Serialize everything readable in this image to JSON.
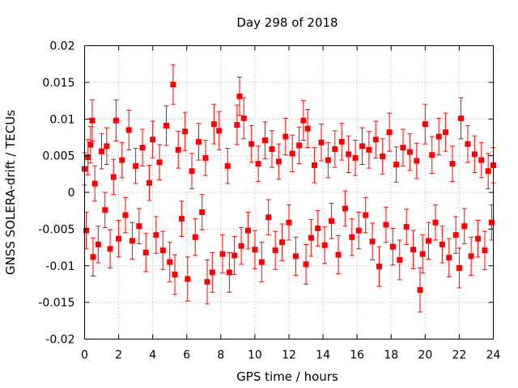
{
  "chart_data": {
    "type": "scatter",
    "title": "Day 298 of 2018",
    "xlabel": "GPS time / hours",
    "ylabel": "GNSS SOLERA-drift / TECUs",
    "xlim": [
      0,
      24
    ],
    "ylim": [
      -0.02,
      0.02
    ],
    "x_ticks": [
      0,
      2,
      4,
      6,
      8,
      10,
      12,
      14,
      16,
      18,
      20,
      22,
      24
    ],
    "x_tick_labels": [
      "0",
      "2",
      "4",
      "6",
      "8",
      "10",
      "12",
      "14",
      "16",
      "18",
      "20",
      "22",
      "24"
    ],
    "y_ticks": [
      -0.02,
      -0.015,
      -0.01,
      -0.005,
      0,
      0.005,
      0.01,
      0.015,
      0.02
    ],
    "y_tick_labels": [
      "-0.02",
      "-0.015",
      "-0.01",
      "-0.005",
      "0",
      "0.005",
      "0.01",
      "0.015",
      "0.02"
    ],
    "grid": true,
    "marker": "square",
    "error_bars": true,
    "series_color": "#ff0000",
    "series": [
      {
        "name": "",
        "points": [
          {
            "x": 0.0,
            "y": 0.0032,
            "err": 0.0022
          },
          {
            "x": 0.1,
            "y": -0.0052,
            "err": 0.0025
          },
          {
            "x": 0.2,
            "y": 0.0048,
            "err": 0.0024
          },
          {
            "x": 0.35,
            "y": 0.0065,
            "err": 0.0025
          },
          {
            "x": 0.45,
            "y": 0.0098,
            "err": 0.0028
          },
          {
            "x": 0.5,
            "y": -0.0088,
            "err": 0.0026
          },
          {
            "x": 0.6,
            "y": 0.0012,
            "err": 0.0024
          },
          {
            "x": 0.8,
            "y": -0.0071,
            "err": 0.0025
          },
          {
            "x": 1.0,
            "y": 0.0056,
            "err": 0.0024
          },
          {
            "x": 1.2,
            "y": -0.0024,
            "err": 0.0024
          },
          {
            "x": 1.3,
            "y": 0.0063,
            "err": 0.0025
          },
          {
            "x": 1.5,
            "y": -0.0077,
            "err": 0.0026
          },
          {
            "x": 1.7,
            "y": 0.0021,
            "err": 0.0024
          },
          {
            "x": 1.85,
            "y": 0.0098,
            "err": 0.0028
          },
          {
            "x": 2.0,
            "y": -0.0063,
            "err": 0.0025
          },
          {
            "x": 2.2,
            "y": 0.0044,
            "err": 0.0024
          },
          {
            "x": 2.4,
            "y": -0.0031,
            "err": 0.0024
          },
          {
            "x": 2.6,
            "y": 0.0085,
            "err": 0.0027
          },
          {
            "x": 2.8,
            "y": -0.0066,
            "err": 0.0025
          },
          {
            "x": 3.0,
            "y": 0.0036,
            "err": 0.0024
          },
          {
            "x": 3.2,
            "y": -0.0046,
            "err": 0.0024
          },
          {
            "x": 3.4,
            "y": 0.0061,
            "err": 0.0025
          },
          {
            "x": 3.6,
            "y": -0.0082,
            "err": 0.0026
          },
          {
            "x": 3.8,
            "y": 0.0013,
            "err": 0.0024
          },
          {
            "x": 4.0,
            "y": 0.0072,
            "err": 0.0025
          },
          {
            "x": 4.2,
            "y": -0.0058,
            "err": 0.0025
          },
          {
            "x": 4.4,
            "y": 0.0041,
            "err": 0.0024
          },
          {
            "x": 4.6,
            "y": -0.0079,
            "err": 0.0026
          },
          {
            "x": 4.8,
            "y": 0.0091,
            "err": 0.0027
          },
          {
            "x": 5.0,
            "y": -0.0095,
            "err": 0.0027
          },
          {
            "x": 5.2,
            "y": 0.0147,
            "err": 0.0027
          },
          {
            "x": 5.3,
            "y": -0.0112,
            "err": 0.0027
          },
          {
            "x": 5.5,
            "y": 0.0058,
            "err": 0.0025
          },
          {
            "x": 5.7,
            "y": -0.0036,
            "err": 0.0024
          },
          {
            "x": 5.9,
            "y": 0.0083,
            "err": 0.0026
          },
          {
            "x": 6.05,
            "y": -0.0118,
            "err": 0.003
          },
          {
            "x": 6.3,
            "y": 0.0029,
            "err": 0.0024
          },
          {
            "x": 6.5,
            "y": -0.0061,
            "err": 0.0025
          },
          {
            "x": 6.7,
            "y": 0.0069,
            "err": 0.0025
          },
          {
            "x": 6.9,
            "y": -0.0027,
            "err": 0.0024
          },
          {
            "x": 7.1,
            "y": 0.0047,
            "err": 0.0024
          },
          {
            "x": 7.2,
            "y": -0.0122,
            "err": 0.003
          },
          {
            "x": 7.5,
            "y": -0.0109,
            "err": 0.0027
          },
          {
            "x": 7.6,
            "y": 0.0093,
            "err": 0.0027
          },
          {
            "x": 7.9,
            "y": 0.0084,
            "err": 0.0026
          },
          {
            "x": 8.1,
            "y": -0.0084,
            "err": 0.0026
          },
          {
            "x": 8.4,
            "y": 0.0036,
            "err": 0.0024
          },
          {
            "x": 8.5,
            "y": -0.0109,
            "err": 0.0027
          },
          {
            "x": 8.8,
            "y": -0.0086,
            "err": 0.0026
          },
          {
            "x": 8.95,
            "y": 0.0092,
            "err": 0.0027
          },
          {
            "x": 9.1,
            "y": 0.0131,
            "err": 0.0026
          },
          {
            "x": 9.2,
            "y": -0.0073,
            "err": 0.0025
          },
          {
            "x": 9.35,
            "y": 0.0101,
            "err": 0.0028
          },
          {
            "x": 9.6,
            "y": -0.0052,
            "err": 0.0025
          },
          {
            "x": 9.8,
            "y": 0.0066,
            "err": 0.0025
          },
          {
            "x": 10.0,
            "y": -0.0078,
            "err": 0.0026
          },
          {
            "x": 10.2,
            "y": 0.0039,
            "err": 0.0024
          },
          {
            "x": 10.4,
            "y": -0.0095,
            "err": 0.0027
          },
          {
            "x": 10.6,
            "y": 0.0071,
            "err": 0.0025
          },
          {
            "x": 10.8,
            "y": -0.0034,
            "err": 0.0024
          },
          {
            "x": 11.0,
            "y": 0.0059,
            "err": 0.0025
          },
          {
            "x": 11.2,
            "y": -0.0079,
            "err": 0.0026
          },
          {
            "x": 11.4,
            "y": 0.0042,
            "err": 0.0024
          },
          {
            "x": 11.6,
            "y": -0.0068,
            "err": 0.0025
          },
          {
            "x": 11.8,
            "y": 0.0076,
            "err": 0.0025
          },
          {
            "x": 12.0,
            "y": -0.0041,
            "err": 0.0024
          },
          {
            "x": 12.2,
            "y": 0.0053,
            "err": 0.0025
          },
          {
            "x": 12.4,
            "y": -0.0087,
            "err": 0.0026
          },
          {
            "x": 12.6,
            "y": 0.0064,
            "err": 0.0025
          },
          {
            "x": 12.85,
            "y": 0.0098,
            "err": 0.0027
          },
          {
            "x": 13.0,
            "y": -0.0098,
            "err": 0.0027
          },
          {
            "x": 13.1,
            "y": 0.0087,
            "err": 0.0026
          },
          {
            "x": 13.3,
            "y": -0.0062,
            "err": 0.0025
          },
          {
            "x": 13.5,
            "y": 0.0037,
            "err": 0.0024
          },
          {
            "x": 13.7,
            "y": -0.0049,
            "err": 0.0024
          },
          {
            "x": 13.9,
            "y": 0.0068,
            "err": 0.0025
          },
          {
            "x": 14.1,
            "y": -0.0072,
            "err": 0.0025
          },
          {
            "x": 14.3,
            "y": 0.0044,
            "err": 0.0024
          },
          {
            "x": 14.5,
            "y": -0.0039,
            "err": 0.0024
          },
          {
            "x": 14.7,
            "y": 0.0059,
            "err": 0.0025
          },
          {
            "x": 14.9,
            "y": -0.0085,
            "err": 0.0026
          },
          {
            "x": 15.1,
            "y": 0.0069,
            "err": 0.0025
          },
          {
            "x": 15.3,
            "y": -0.0022,
            "err": 0.0024
          },
          {
            "x": 15.5,
            "y": 0.0052,
            "err": 0.0025
          },
          {
            "x": 15.7,
            "y": -0.0061,
            "err": 0.0025
          },
          {
            "x": 15.9,
            "y": 0.0047,
            "err": 0.0024
          },
          {
            "x": 16.1,
            "y": -0.0052,
            "err": 0.0025
          },
          {
            "x": 16.3,
            "y": 0.0063,
            "err": 0.0025
          },
          {
            "x": 16.5,
            "y": -0.0031,
            "err": 0.0024
          },
          {
            "x": 16.7,
            "y": 0.0058,
            "err": 0.0025
          },
          {
            "x": 16.9,
            "y": -0.0067,
            "err": 0.0025
          },
          {
            "x": 17.1,
            "y": 0.0072,
            "err": 0.0025
          },
          {
            "x": 17.3,
            "y": -0.0101,
            "err": 0.0027
          },
          {
            "x": 17.5,
            "y": 0.0049,
            "err": 0.0024
          },
          {
            "x": 17.7,
            "y": -0.0044,
            "err": 0.0024
          },
          {
            "x": 17.9,
            "y": 0.0082,
            "err": 0.0026
          },
          {
            "x": 18.1,
            "y": -0.0074,
            "err": 0.0025
          },
          {
            "x": 18.3,
            "y": 0.0038,
            "err": 0.0024
          },
          {
            "x": 18.5,
            "y": -0.0092,
            "err": 0.0027
          },
          {
            "x": 18.7,
            "y": 0.0061,
            "err": 0.0025
          },
          {
            "x": 18.9,
            "y": -0.0047,
            "err": 0.0024
          },
          {
            "x": 19.1,
            "y": 0.0055,
            "err": 0.0025
          },
          {
            "x": 19.3,
            "y": -0.0078,
            "err": 0.0026
          },
          {
            "x": 19.5,
            "y": 0.0043,
            "err": 0.0024
          },
          {
            "x": 19.7,
            "y": -0.0133,
            "err": 0.003
          },
          {
            "x": 19.85,
            "y": -0.0084,
            "err": 0.0026
          },
          {
            "x": 20.0,
            "y": 0.0093,
            "err": 0.0027
          },
          {
            "x": 20.2,
            "y": -0.0066,
            "err": 0.0025
          },
          {
            "x": 20.4,
            "y": 0.0051,
            "err": 0.0025
          },
          {
            "x": 20.6,
            "y": -0.0041,
            "err": 0.0024
          },
          {
            "x": 20.8,
            "y": 0.0076,
            "err": 0.0025
          },
          {
            "x": 21.0,
            "y": -0.0071,
            "err": 0.0025
          },
          {
            "x": 21.2,
            "y": 0.0082,
            "err": 0.0026
          },
          {
            "x": 21.4,
            "y": -0.0089,
            "err": 0.0026
          },
          {
            "x": 21.6,
            "y": 0.0039,
            "err": 0.0024
          },
          {
            "x": 21.8,
            "y": -0.0058,
            "err": 0.0025
          },
          {
            "x": 22.0,
            "y": -0.0103,
            "err": 0.0027
          },
          {
            "x": 22.1,
            "y": 0.0101,
            "err": 0.0028
          },
          {
            "x": 22.3,
            "y": -0.0046,
            "err": 0.0024
          },
          {
            "x": 22.5,
            "y": 0.0066,
            "err": 0.0025
          },
          {
            "x": 22.7,
            "y": -0.0087,
            "err": 0.0026
          },
          {
            "x": 22.9,
            "y": 0.0052,
            "err": 0.0025
          },
          {
            "x": 23.1,
            "y": -0.0063,
            "err": 0.0025
          },
          {
            "x": 23.3,
            "y": 0.0044,
            "err": 0.0024
          },
          {
            "x": 23.5,
            "y": -0.0079,
            "err": 0.0026
          },
          {
            "x": 23.7,
            "y": 0.0029,
            "err": 0.0024
          },
          {
            "x": 23.9,
            "y": -0.0041,
            "err": 0.0024
          },
          {
            "x": 24.0,
            "y": 0.0037,
            "err": 0.0024
          }
        ]
      }
    ]
  }
}
